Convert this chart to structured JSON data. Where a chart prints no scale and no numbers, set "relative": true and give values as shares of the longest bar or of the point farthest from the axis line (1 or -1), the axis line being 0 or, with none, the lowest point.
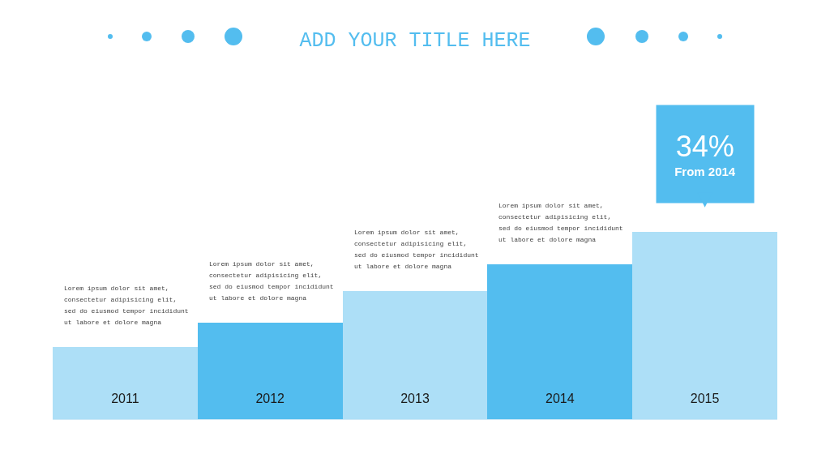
{
  "chart_data": {
    "type": "bar",
    "title": "ADD YOUR TITLE HERE",
    "categories": [
      "2011",
      "2012",
      "2013",
      "2014",
      "2015"
    ],
    "values": [
      0.385,
      0.515,
      0.684,
      0.827,
      1
    ],
    "colors": [
      "#addff7",
      "#53bdef",
      "#addff7",
      "#53bdef",
      "#addff7"
    ],
    "relative": true,
    "annotations": [
      "Lorem ipsum dolor sit amet,\nconsectetur adipisicing elit,\nsed do eiusmod tempor incididunt\nut labore et dolore magna",
      "Lorem ipsum dolor sit amet,\nconsectetur adipisicing elit,\nsed do eiusmod tempor incididunt\nut labore et dolore magna",
      "Lorem ipsum dolor sit amet,\nconsectetur adipisicing elit,\nsed do eiusmod tempor incididunt\nut labore et dolore magna",
      "Lorem ipsum dolor sit amet,\nconsectetur adipisicing elit,\nsed do eiusmod tempor incididunt\nut labore et dolore magna",
      {
        "text": "34%\nFrom 2014",
        "x": "2015",
        "y": 1
      }
    ]
  }
}
